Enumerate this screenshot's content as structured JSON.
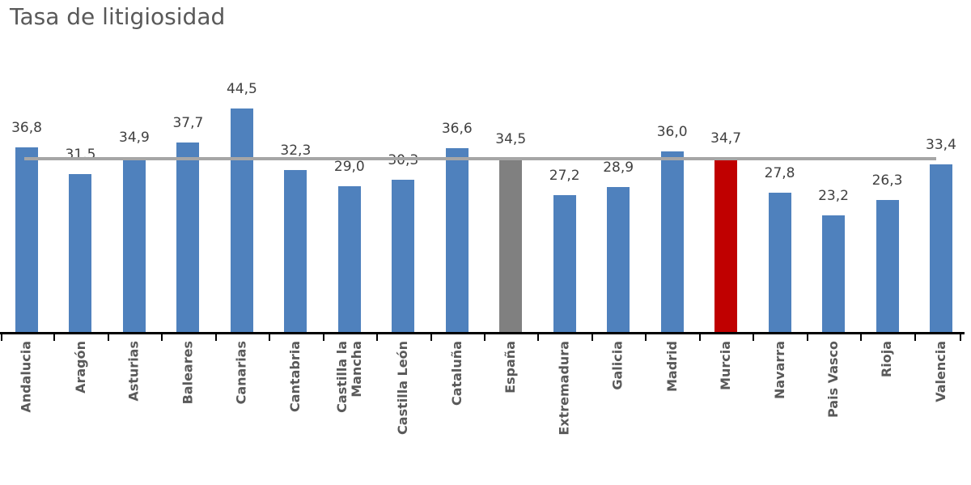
{
  "header": {
    "title": "Tasa de litigiosidad"
  },
  "chart_data": {
    "type": "bar",
    "title": "Tasa de litigiosidad",
    "xlabel": "",
    "ylabel": "",
    "grid": false,
    "legend": "none",
    "ylim": [
      0,
      48
    ],
    "categories": [
      "Andalucia",
      "Aragón",
      "Asturias",
      "Baleares",
      "Canarias",
      "Cantabria",
      "Castilla la Mancha",
      "Castilla León",
      "Cataluña",
      "España",
      "Extremadura",
      "Galicia",
      "Madrid",
      "Murcia",
      "Navarra",
      "Pais Vasco",
      "Rioja",
      "Valencia"
    ],
    "categories_display": [
      "Andalucia",
      "Aragón",
      "Asturias",
      "Baleares",
      "Canarias",
      "Cantabria",
      "Castilla la\nMancha",
      "Castilla León",
      "Cataluña",
      "España",
      "Extremadura",
      "Galicia",
      "Madrid",
      "Murcia",
      "Navarra",
      "Pais Vasco",
      "Rioja",
      "Valencia"
    ],
    "values": [
      36.8,
      31.5,
      34.9,
      37.7,
      44.5,
      32.3,
      29.0,
      30.3,
      36.6,
      34.5,
      27.2,
      28.9,
      36.0,
      34.7,
      27.8,
      23.2,
      26.3,
      33.4
    ],
    "value_labels": [
      "36,8",
      "31,5",
      "34,9",
      "37,7",
      "44,5",
      "32,3",
      "29,0",
      "30,3",
      "36,6",
      "34,5",
      "27,2",
      "28,9",
      "36,0",
      "34,7",
      "27,8",
      "23,2",
      "26,3",
      "33,4"
    ],
    "colors": {
      "default": "#4f81bd",
      "highlights": {
        "España": "#808080",
        "Murcia": "#c00000"
      }
    },
    "reference_line": {
      "value": 34.5,
      "color": "#a6a6a6"
    },
    "axis_color": "#000000"
  }
}
